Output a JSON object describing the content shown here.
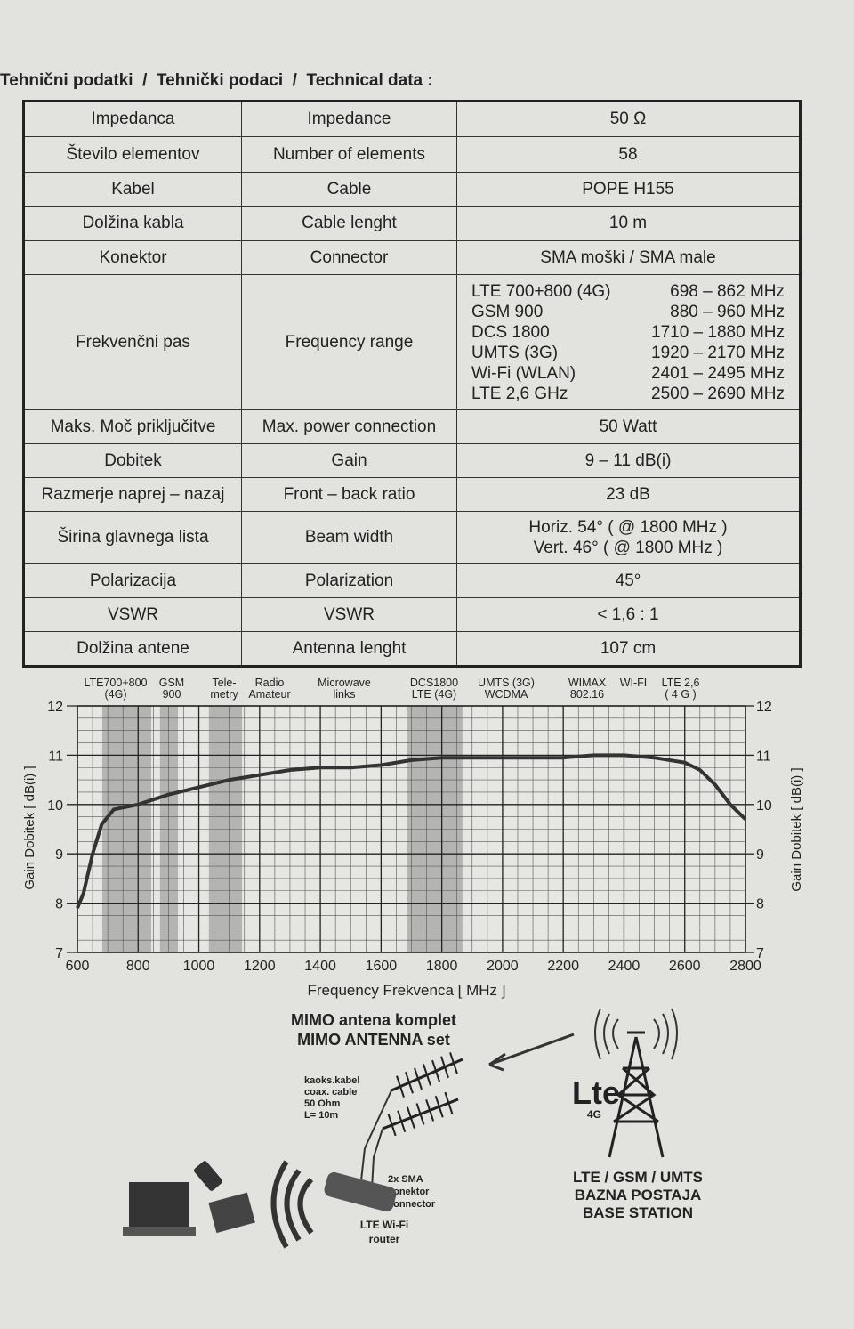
{
  "header": {
    "title": "Tehnični podatki  /  Tehnički podaci  /  Technical data :"
  },
  "table": {
    "rows": [
      [
        "Impedanca",
        "Impedance",
        "50 Ω"
      ],
      [
        "Število elementov",
        "Number of elements",
        "58"
      ],
      [
        "Kabel",
        "Cable",
        "POPE H155"
      ],
      [
        "Dolžina kabla",
        "Cable lenght",
        "10 m"
      ],
      [
        "Konektor",
        "Connector",
        "SMA moški  /  SMA male"
      ],
      [
        "Frekvenčni pas",
        "Frequency range",
        [
          [
            "LTE 700+800 (4G)",
            "698 – 862 MHz"
          ],
          [
            "GSM 900",
            "880 – 960 MHz"
          ],
          [
            "DCS 1800",
            "1710 – 1880 MHz"
          ],
          [
            "UMTS (3G)",
            "1920 – 2170 MHz"
          ],
          [
            "Wi-Fi (WLAN)",
            "2401 – 2495 MHz"
          ],
          [
            "LTE 2,6 GHz",
            "2500 – 2690 MHz"
          ]
        ]
      ],
      [
        "Maks. Moč priključitve",
        "Max. power connection",
        "50 Watt"
      ],
      [
        "Dobitek",
        "Gain",
        "9 – 11 dB(i)"
      ],
      [
        "Razmerje  naprej – nazaj",
        "Front – back  ratio",
        "23 dB"
      ],
      [
        "Širina glavnega lista",
        "Beam width",
        [
          "Horiz. 54°    ( @ 1800 MHz )",
          "Vert.  46°    ( @ 1800 MHz )"
        ]
      ],
      [
        "Polarizacija",
        "Polarization",
        "45°"
      ],
      [
        "VSWR",
        "VSWR",
        "< 1,6 : 1"
      ],
      [
        "Dolžina antene",
        "Antenna lenght",
        "107 cm"
      ]
    ]
  },
  "chart_data": {
    "type": "line",
    "x_label": "Frequency  Frekvenca  [ MHz ]",
    "y_label": "Gain  Dobitek  [ dB(i) ]",
    "y2_label": "Gain  Dobitek  [ dB(i) ]",
    "x": [
      600,
      620,
      650,
      680,
      720,
      800,
      900,
      1000,
      1100,
      1200,
      1300,
      1400,
      1500,
      1600,
      1700,
      1800,
      1900,
      2000,
      2100,
      2200,
      2300,
      2400,
      2500,
      2600,
      2650,
      2700,
      2750,
      2800
    ],
    "values": [
      7.9,
      8.2,
      9.0,
      9.6,
      9.9,
      10.0,
      10.2,
      10.35,
      10.5,
      10.6,
      10.7,
      10.75,
      10.75,
      10.8,
      10.9,
      10.95,
      10.95,
      10.95,
      10.95,
      10.95,
      11.0,
      11.0,
      10.95,
      10.85,
      10.7,
      10.4,
      10.0,
      9.7
    ],
    "color": "#333333",
    "xlim": [
      600,
      2800
    ],
    "xticks": [
      600,
      800,
      1000,
      1200,
      1400,
      1600,
      1800,
      2000,
      2200,
      2400,
      2600,
      2800
    ],
    "ylim": [
      7,
      12
    ],
    "yticks": [
      7,
      8,
      9,
      10,
      11,
      12
    ],
    "y2lim": [
      7,
      12
    ],
    "y2ticks": [
      7,
      8,
      9,
      10,
      11,
      12
    ],
    "grid": true,
    "shaded_bands": [
      [
        682,
        843
      ],
      [
        872,
        931
      ],
      [
        1033,
        1142
      ],
      [
        1687,
        1868
      ]
    ],
    "band_color": "#8a8a8a",
    "band_labels": [
      [
        "LTE700+800",
        "(4G)"
      ],
      [
        "GSM",
        "900"
      ],
      [
        "Tele-",
        "metry"
      ],
      [
        "Radio",
        "Amateur"
      ],
      [
        "Microwave",
        "links"
      ],
      [
        "DCS1800",
        "LTE (4G)"
      ],
      [
        "UMTS (3G)",
        "WCDMA"
      ],
      [
        "WIMAX",
        "802.16"
      ],
      [
        "WI-FI"
      ],
      [
        "LTE 2,6",
        "( 4 G )"
      ]
    ]
  },
  "diagram": {
    "title": [
      "MIMO antena komplet",
      "MIMO ANTENNA set"
    ],
    "cable": [
      "kaoks.kabel",
      "coax. cable",
      "50 Ohm",
      "L= 10m"
    ],
    "connector": [
      "2x SMA",
      "konektor",
      "connector"
    ],
    "router": [
      "LTE Wi-Fi",
      "router"
    ],
    "station": [
      "LTE / GSM / UMTS",
      "BAZNA POSTAJA",
      "BASE STATION"
    ],
    "logo": "Lte",
    "logo_sub": "4G"
  }
}
